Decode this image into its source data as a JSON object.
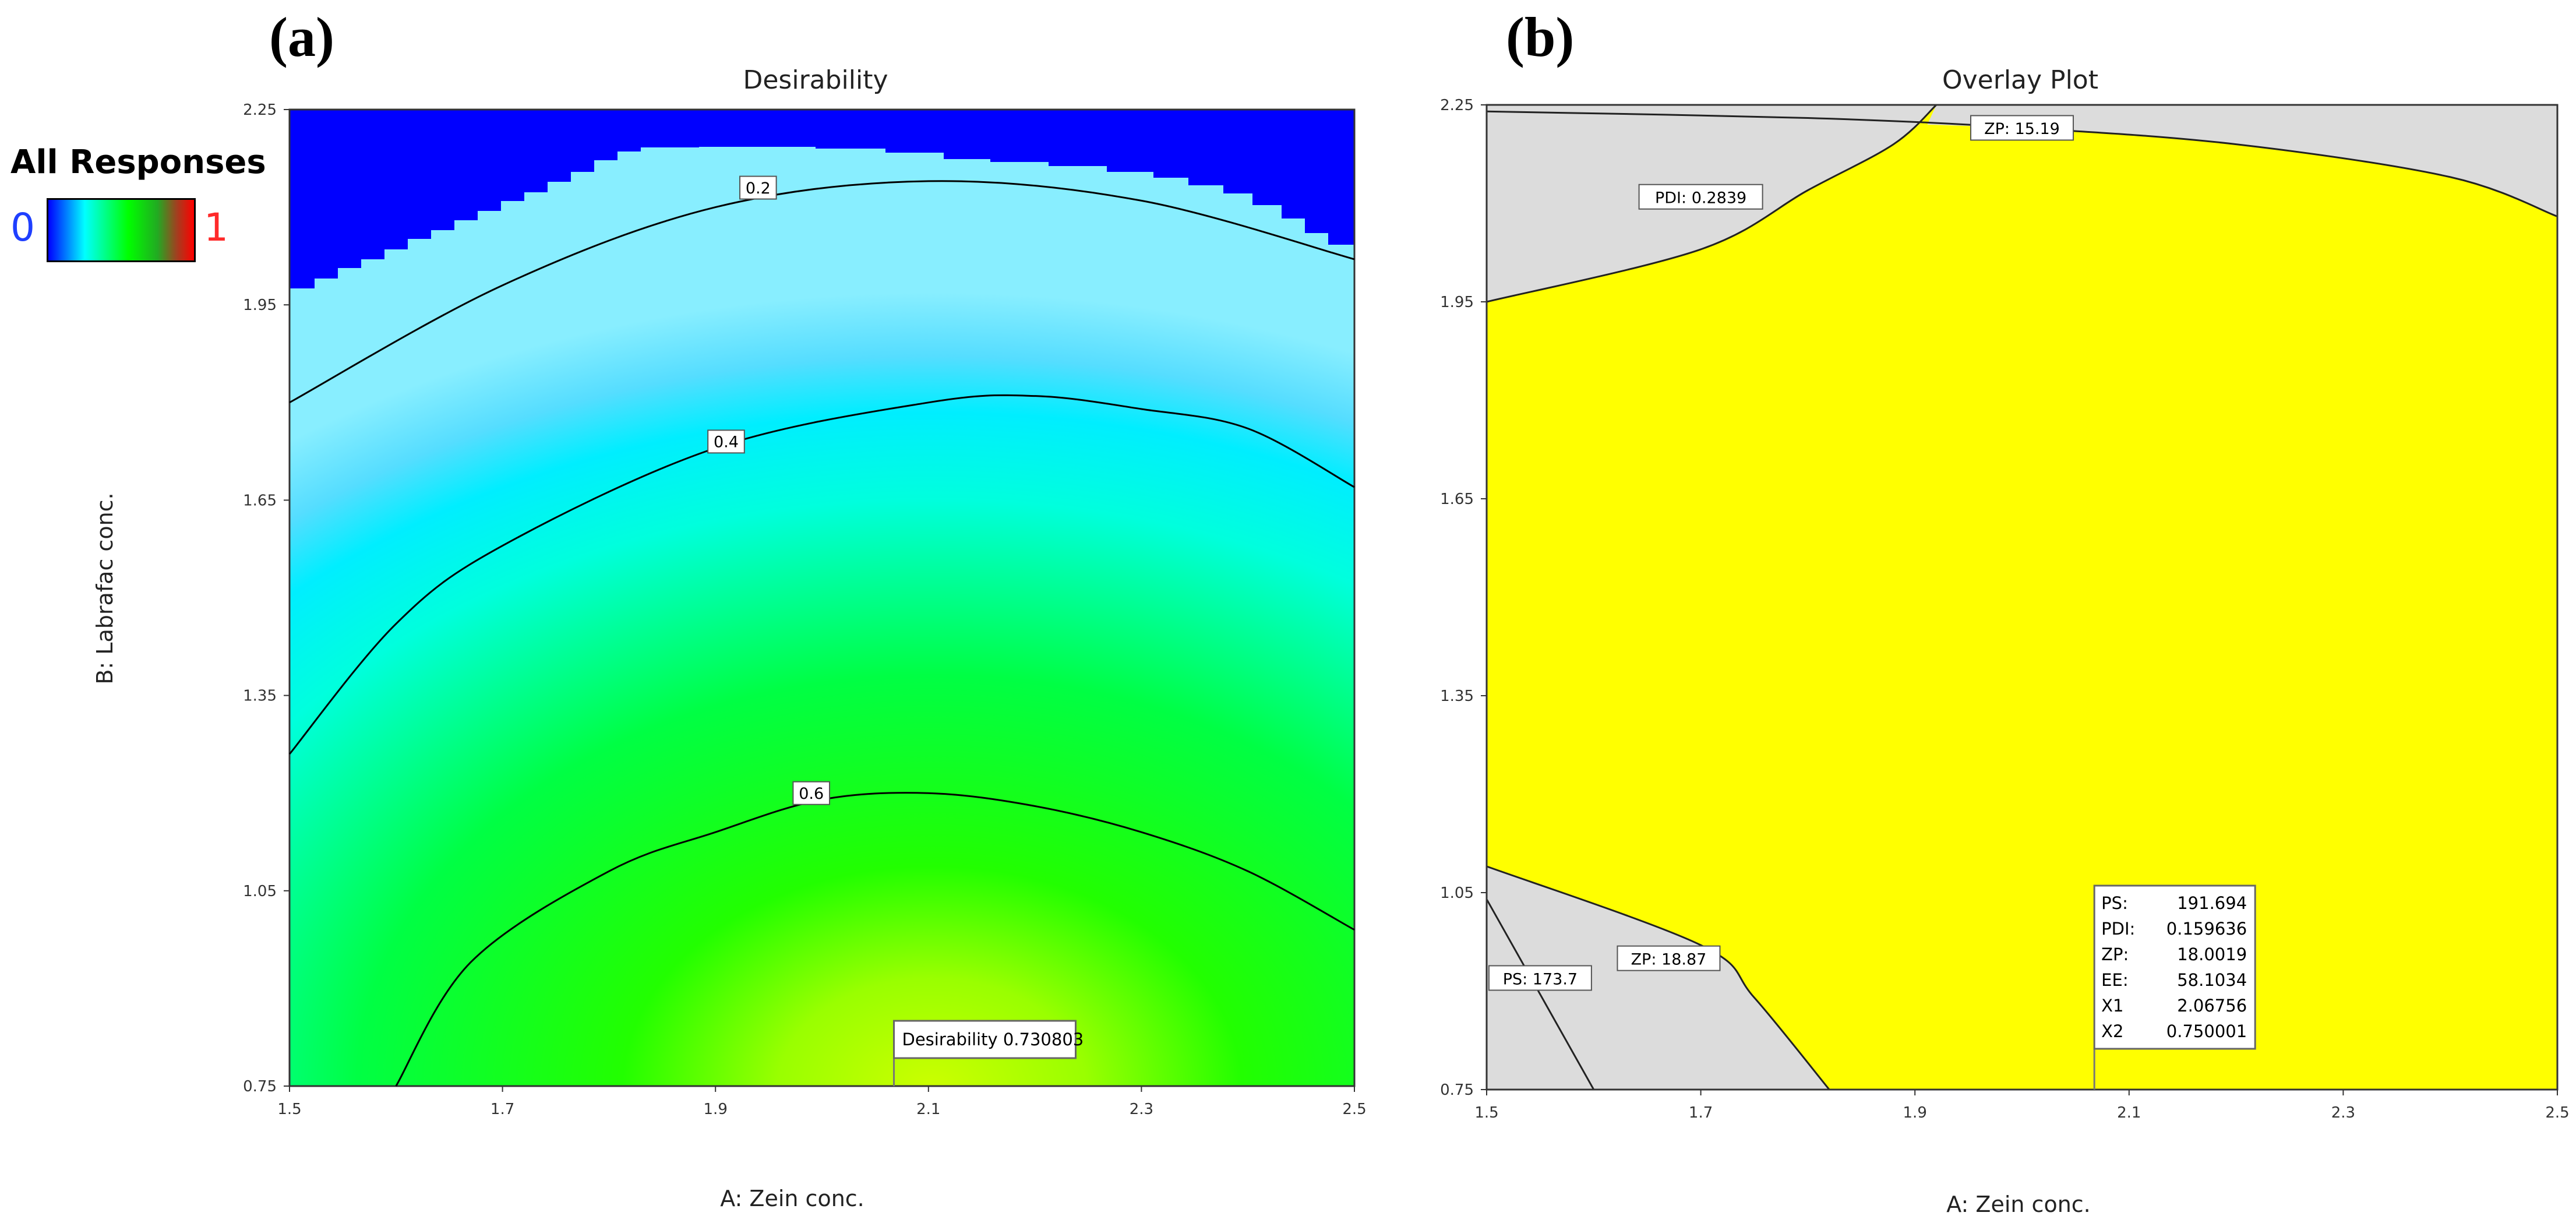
{
  "legend": {
    "title": "All Responses",
    "min_label": "0",
    "max_label": "1",
    "min_color": "#1f3fff",
    "max_color": "#ff2a2a"
  },
  "chart_data": [
    {
      "panel": "(a)",
      "type": "heatmap",
      "title": "Desirability",
      "xlabel": "A: Zein conc.",
      "ylabel": "B: Labrafac conc.",
      "xlim": [
        1.5,
        2.5
      ],
      "ylim": [
        0.75,
        2.25
      ],
      "xticks": [
        "1.5",
        "1.7",
        "1.9",
        "2.1",
        "2.3",
        "2.5"
      ],
      "yticks": [
        "0.75",
        "1.05",
        "1.35",
        "1.65",
        "1.95",
        "2.25"
      ],
      "colorscale": [
        "#0000ff",
        "#00ffff",
        "#00ff00",
        "#ffff00",
        "#ff0000"
      ],
      "contours": [
        {
          "level": "0.2",
          "points": [
            [
              1.5,
              1.8
            ],
            [
              1.7,
              1.98
            ],
            [
              1.9,
              2.1
            ],
            [
              2.1,
              2.14
            ],
            [
              2.3,
              2.11
            ],
            [
              2.5,
              2.02
            ]
          ],
          "label_at": [
            1.94,
            2.13
          ]
        },
        {
          "level": "0.4",
          "points": [
            [
              1.5,
              1.26
            ],
            [
              1.6,
              1.46
            ],
            [
              1.7,
              1.58
            ],
            [
              1.9,
              1.73
            ],
            [
              2.1,
              1.8
            ],
            [
              2.2,
              1.81
            ],
            [
              2.3,
              1.79
            ],
            [
              2.4,
              1.76
            ],
            [
              2.5,
              1.67
            ]
          ],
          "label_at": [
            1.91,
            1.74
          ]
        },
        {
          "level": "0.6",
          "points": [
            [
              1.6,
              0.75
            ],
            [
              1.67,
              0.94
            ],
            [
              1.8,
              1.08
            ],
            [
              1.9,
              1.14
            ],
            [
              2.0,
              1.19
            ],
            [
              2.1,
              1.2
            ],
            [
              2.2,
              1.18
            ],
            [
              2.3,
              1.14
            ],
            [
              2.4,
              1.08
            ],
            [
              2.5,
              0.99
            ]
          ],
          "label_at": [
            1.99,
            1.2
          ]
        }
      ],
      "optimum": {
        "x": 2.06756,
        "y": 0.75,
        "label": "Desirability",
        "value": "0.730803"
      }
    },
    {
      "panel": "(b)",
      "type": "area",
      "title": "Overlay Plot",
      "xlabel": "A: Zein conc.",
      "ylabel": "",
      "xlim": [
        1.5,
        2.5
      ],
      "ylim": [
        0.75,
        2.25
      ],
      "xticks": [
        "1.5",
        "1.7",
        "1.9",
        "2.1",
        "2.3",
        "2.5"
      ],
      "yticks": [
        "0.75",
        "1.05",
        "1.35",
        "1.65",
        "1.95",
        "2.25"
      ],
      "feasible_color": "#ffff00",
      "excluded_color": "#dcdcdc",
      "boundaries": [
        {
          "name": "ZP: 15.19",
          "points": [
            [
              1.5,
              2.24
            ],
            [
              1.8,
              2.23
            ],
            [
              2.0,
              2.215
            ],
            [
              2.2,
              2.19
            ],
            [
              2.4,
              2.14
            ],
            [
              2.5,
              2.08
            ]
          ],
          "label_at": [
            2.0,
            2.215
          ]
        },
        {
          "name": "PDI: 0.2839",
          "points": [
            [
              1.5,
              1.95
            ],
            [
              1.7,
              2.03
            ],
            [
              1.8,
              2.12
            ],
            [
              1.88,
              2.19
            ],
            [
              1.92,
              2.25
            ]
          ],
          "label_at": [
            1.7,
            2.11
          ]
        },
        {
          "name": "ZP: 18.87",
          "points": [
            [
              1.5,
              1.09
            ],
            [
              1.7,
              0.97
            ],
            [
              1.75,
              0.89
            ],
            [
              1.82,
              0.75
            ]
          ],
          "label_at": [
            1.67,
            0.95
          ]
        },
        {
          "name": "PS: 173.7",
          "points": [
            [
              1.5,
              1.04
            ],
            [
              1.6,
              0.75
            ]
          ],
          "label_at": [
            1.55,
            0.92
          ]
        }
      ],
      "optimum": {
        "x": 2.06756,
        "y": 0.75,
        "rows": [
          {
            "k": "PS:",
            "v": "191.694"
          },
          {
            "k": "PDI:",
            "v": "0.159636"
          },
          {
            "k": "ZP:",
            "v": "18.0019"
          },
          {
            "k": "EE:",
            "v": "58.1034"
          },
          {
            "k": "X1",
            "v": "2.06756"
          },
          {
            "k": "X2",
            "v": "0.750001"
          }
        ]
      }
    }
  ]
}
